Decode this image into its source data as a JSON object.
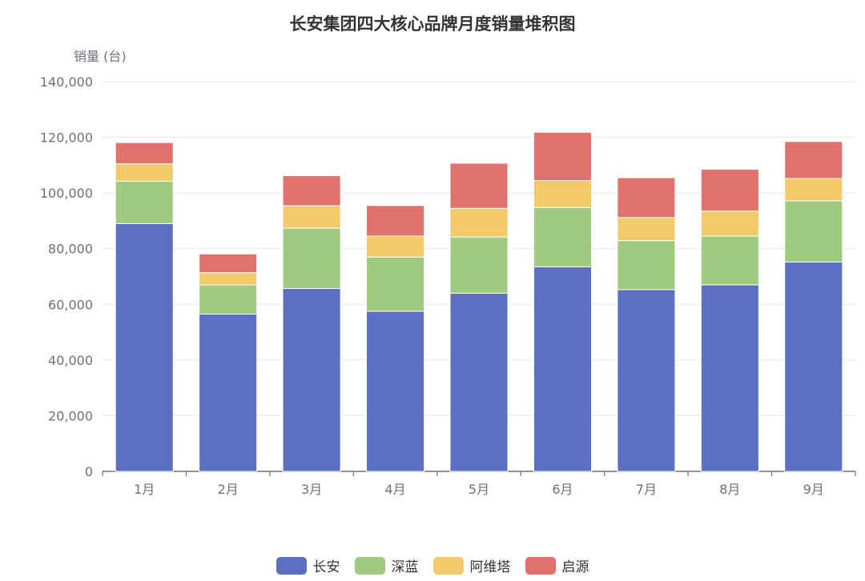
{
  "chart_data": {
    "type": "bar",
    "stacked": true,
    "title": "长安集团四大核心品牌月度销量堆积图",
    "ylabel": "销量 (台)",
    "xlabel": "",
    "ylim": [
      0,
      140000
    ],
    "yticks": [
      "0",
      "20,000",
      "40,000",
      "60,000",
      "80,000",
      "100,000",
      "120,000",
      "140,000"
    ],
    "categories": [
      "1月",
      "2月",
      "3月",
      "4月",
      "5月",
      "6月",
      "7月",
      "8月",
      "9月"
    ],
    "series": [
      {
        "name": "长安",
        "color": "#5b70c1",
        "values": [
          89000,
          56500,
          65700,
          57500,
          64000,
          73500,
          65300,
          67000,
          75200
        ]
      },
      {
        "name": "深蓝",
        "color": "#9fca7f",
        "values": [
          15200,
          10500,
          21700,
          19500,
          20200,
          21300,
          17600,
          17500,
          22000
        ]
      },
      {
        "name": "阿维塔",
        "color": "#f2c96b",
        "values": [
          6300,
          4400,
          8000,
          7500,
          10300,
          9700,
          8300,
          9000,
          8000
        ]
      },
      {
        "name": "启源",
        "color": "#e0716c",
        "values": [
          7600,
          6700,
          10800,
          11000,
          16200,
          17300,
          14300,
          15000,
          13300
        ]
      }
    ],
    "grid": true,
    "legend_position": "bottom"
  }
}
